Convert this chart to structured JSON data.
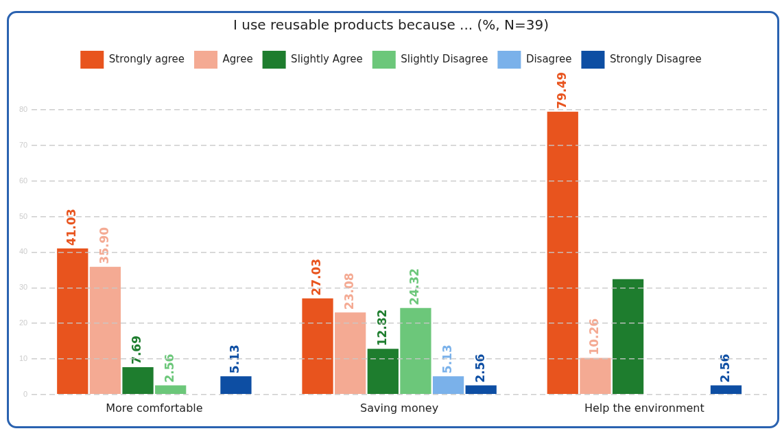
{
  "chart_data": {
    "type": "bar",
    "title": "I use reusable products because ... (%, N=39)",
    "categories": [
      "More comfortable",
      "Saving money",
      "Help the environment"
    ],
    "series": [
      {
        "name": "Strongly agree",
        "color": "#e8541e",
        "values": [
          41.03,
          27.03,
          79.49
        ],
        "value_labels": [
          "41.03",
          "27.03",
          "79.49"
        ]
      },
      {
        "name": "Agree",
        "color": "#f4aa93",
        "values": [
          35.9,
          23.08,
          10.26
        ],
        "value_labels": [
          "35.90",
          "23.08",
          "10.26"
        ]
      },
      {
        "name": "Slightly Agree",
        "color": "#1e7d2e",
        "values": [
          7.69,
          12.82,
          32.4
        ],
        "value_labels": [
          "7.69",
          "12.82",
          null
        ]
      },
      {
        "name": "Slightly Disagree",
        "color": "#6cc77a",
        "values": [
          2.56,
          24.32,
          0
        ],
        "value_labels": [
          "2.56",
          "24.32",
          null
        ]
      },
      {
        "name": "Disagree",
        "color": "#7ab1ea",
        "values": [
          0,
          5.13,
          0
        ],
        "value_labels": [
          null,
          "5.13",
          null
        ]
      },
      {
        "name": "Strongly Disagree",
        "color": "#0d4ea3",
        "values": [
          5.13,
          2.56,
          2.56
        ],
        "value_labels": [
          "5.13",
          "2.56",
          "2.56"
        ]
      }
    ],
    "ylim": [
      0,
      80
    ],
    "yticks": [
      0,
      10,
      20,
      30,
      40,
      50,
      60,
      70,
      80
    ],
    "grid": "y",
    "legend": "top"
  }
}
